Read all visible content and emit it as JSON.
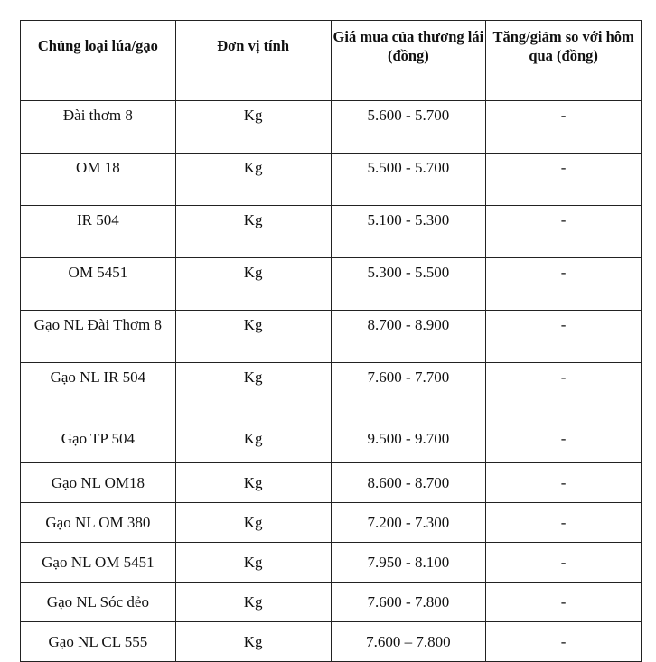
{
  "headers": [
    "Chủng loại lúa/gạo",
    "Đơn vị tính",
    "Giá mua của thương lái (đồng)",
    "Tăng/giảm so với hôm qua (đồng)"
  ],
  "rows": [
    [
      "Đài thơm 8",
      "Kg",
      "5.600 - 5.700",
      "-"
    ],
    [
      "OM 18",
      "Kg",
      "5.500 - 5.700",
      "-"
    ],
    [
      "IR 504",
      "Kg",
      "5.100 - 5.300",
      "-"
    ],
    [
      "OM 5451",
      "Kg",
      "5.300 - 5.500",
      "-"
    ],
    [
      "Gạo NL Đài Thơm 8",
      "Kg",
      "8.700 - 8.900",
      "-"
    ],
    [
      "Gạo NL IR 504",
      "Kg",
      "7.600 - 7.700",
      "-"
    ],
    [
      "Gạo TP 504",
      "Kg",
      "9.500 - 9.700",
      "-"
    ],
    [
      "Gạo NL OM18",
      "Kg",
      "8.600 - 8.700",
      "-"
    ],
    [
      "Gạo NL OM 380",
      "Kg",
      "7.200 - 7.300",
      "-"
    ],
    [
      "Gạo NL OM 5451",
      "Kg",
      "7.950 - 8.100",
      "-"
    ],
    [
      "Gạo NL Sóc dẻo",
      "Kg",
      "7.600 - 7.800",
      "-"
    ],
    [
      "Gạo NL CL 555",
      "Kg",
      "7.600 – 7.800",
      "-"
    ]
  ]
}
